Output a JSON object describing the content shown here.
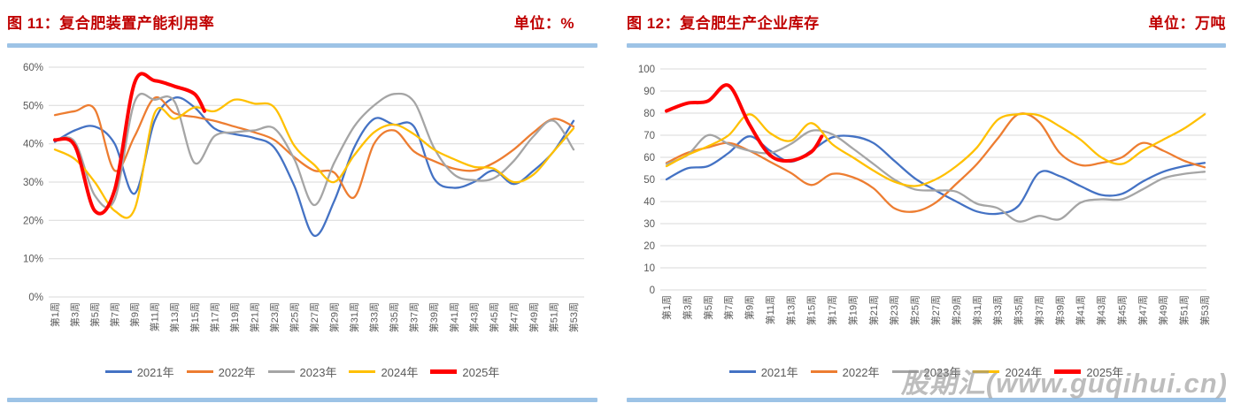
{
  "watermark": "股期汇(www.guqihui.cn)",
  "colors": {
    "title": "#C00000",
    "separator": "#9DC3E6",
    "axis_text": "#595959",
    "gridline": "#D9D9D9",
    "watermark_gray": "#919191",
    "series_2021": "#4472C4",
    "series_2022": "#ED7D31",
    "series_2023": "#A5A5A5",
    "series_2024": "#FFC000",
    "series_2025": "#FF0000"
  },
  "chart_data": [
    {
      "type": "line",
      "title": "图 11：复合肥装置产能利用率",
      "unit_label": "单位：%",
      "xlabel": "",
      "ylabel": "",
      "ylim": [
        0,
        60
      ],
      "ytick_step": 10,
      "ytick_labels": [
        "0%",
        "10%",
        "20%",
        "30%",
        "40%",
        "50%",
        "60%"
      ],
      "grid": true,
      "legend_position": "bottom",
      "categories": [
        "第1周",
        "第3周",
        "第5周",
        "第7周",
        "第9周",
        "第11周",
        "第13周",
        "第15周",
        "第17周",
        "第19周",
        "第21周",
        "第23周",
        "第25周",
        "第27周",
        "第29周",
        "第31周",
        "第33周",
        "第35周",
        "第37周",
        "第39周",
        "第41周",
        "第43周",
        "第45周",
        "第47周",
        "第49周",
        "第51周",
        "第53周"
      ],
      "category_weeks": [
        1,
        3,
        5,
        7,
        9,
        11,
        13,
        15,
        17,
        19,
        21,
        23,
        25,
        27,
        29,
        31,
        33,
        35,
        37,
        39,
        41,
        43,
        45,
        47,
        49,
        51,
        53
      ],
      "series": [
        {
          "name": "2021年",
          "color_key": "series_2021",
          "thick": false,
          "values": [
            40.5,
            43.5,
            44.5,
            40,
            27,
            46,
            52,
            49.5,
            44,
            42.5,
            41.5,
            39,
            29,
            16,
            25,
            39,
            46.5,
            45,
            44.5,
            31,
            28.5,
            30,
            33,
            29.5,
            33,
            38,
            46
          ]
        },
        {
          "name": "2022年",
          "color_key": "series_2022",
          "thick": false,
          "values": [
            47.5,
            48.5,
            49,
            33,
            42,
            52,
            48,
            47,
            46,
            44.5,
            43,
            41,
            36.5,
            33,
            32.5,
            26,
            40,
            43.5,
            38,
            35.5,
            33.5,
            33,
            35,
            38.5,
            43,
            46.5,
            44.5
          ]
        },
        {
          "name": "2023年",
          "color_key": "series_2023",
          "thick": false,
          "values": [
            41,
            40.5,
            26.5,
            25.5,
            51,
            51.5,
            51,
            35,
            42,
            43,
            43.5,
            44,
            36,
            24,
            35,
            44.5,
            50,
            53,
            51,
            39,
            32,
            30.5,
            31,
            35.5,
            42,
            46,
            38.5
          ]
        },
        {
          "name": "2024年",
          "color_key": "series_2024",
          "thick": false,
          "values": [
            38.5,
            36,
            30,
            22.5,
            23,
            48,
            46.5,
            49.5,
            48.5,
            51.5,
            50.5,
            49.5,
            39.5,
            34.5,
            30,
            37,
            43,
            45,
            42.5,
            38.5,
            36,
            34,
            33.5,
            30,
            32,
            38,
            44
          ]
        },
        {
          "name": "2025年",
          "color_key": "series_2025",
          "thick": true,
          "weeks": [
            1,
            3,
            5,
            7,
            9,
            11,
            13,
            15,
            16
          ],
          "values": [
            41,
            39.5,
            22.5,
            28,
            56,
            56.5,
            55,
            53,
            48.5
          ]
        }
      ]
    },
    {
      "type": "line",
      "title": "图 12：复合肥生产企业库存",
      "unit_label": "单位：万吨",
      "xlabel": "",
      "ylabel": "",
      "ylim": [
        0,
        100
      ],
      "ytick_step": 10,
      "ytick_labels": [
        "0",
        "10",
        "20",
        "30",
        "40",
        "50",
        "60",
        "70",
        "80",
        "90",
        "100"
      ],
      "grid": true,
      "legend_position": "bottom",
      "categories": [
        "第1周",
        "第3周",
        "第5周",
        "第7周",
        "第9周",
        "第11周",
        "第13周",
        "第15周",
        "第17周",
        "第19周",
        "第21周",
        "第23周",
        "第25周",
        "第27周",
        "第29周",
        "第31周",
        "第33周",
        "第35周",
        "第37周",
        "第39周",
        "第41周",
        "第43周",
        "第45周",
        "第47周",
        "第49周",
        "第51周",
        "第53周"
      ],
      "category_weeks": [
        1,
        3,
        5,
        7,
        9,
        11,
        13,
        15,
        17,
        19,
        21,
        23,
        25,
        27,
        29,
        31,
        33,
        35,
        37,
        39,
        41,
        43,
        45,
        47,
        49,
        51,
        53
      ],
      "series": [
        {
          "name": "2021年",
          "color_key": "series_2021",
          "thick": false,
          "values": [
            50,
            55,
            56,
            62,
            69.5,
            63,
            58,
            63,
            69,
            69.5,
            66.5,
            58.5,
            50.5,
            45,
            40,
            35.5,
            34.5,
            38,
            53,
            51.5,
            47,
            43,
            43.5,
            49,
            53.5,
            56,
            57.5
          ]
        },
        {
          "name": "2022年",
          "color_key": "series_2022",
          "thick": false,
          "values": [
            57.5,
            62,
            64.5,
            66.5,
            63,
            58,
            53,
            47.5,
            52.5,
            51,
            46,
            37,
            35.5,
            39.5,
            48,
            57,
            68.5,
            79.5,
            76,
            62,
            56.5,
            57.5,
            60,
            66.5,
            63,
            58.5,
            55.5
          ]
        },
        {
          "name": "2023年",
          "color_key": "series_2023",
          "thick": false,
          "values": [
            57,
            61,
            70,
            66,
            63,
            62,
            66,
            72,
            70.5,
            64,
            57,
            50,
            45.5,
            45,
            44.5,
            39,
            37,
            31,
            33.5,
            32,
            39.5,
            41,
            41,
            45.5,
            50.5,
            52.5,
            53.5
          ]
        },
        {
          "name": "2024年",
          "color_key": "series_2024",
          "thick": false,
          "values": [
            56,
            61,
            65,
            70,
            79.5,
            71,
            67.5,
            75.5,
            66,
            60,
            54,
            49,
            47,
            50,
            56,
            64.5,
            77,
            79.5,
            79,
            74,
            68,
            60,
            57,
            63,
            68,
            73,
            79.5
          ]
        },
        {
          "name": "2025年",
          "color_key": "series_2025",
          "thick": true,
          "weeks": [
            1,
            3,
            5,
            7,
            9,
            11,
            13,
            15,
            16
          ],
          "values": [
            81,
            84.5,
            85.5,
            92.5,
            75,
            61,
            58.5,
            62.5,
            69.5
          ]
        }
      ]
    }
  ]
}
